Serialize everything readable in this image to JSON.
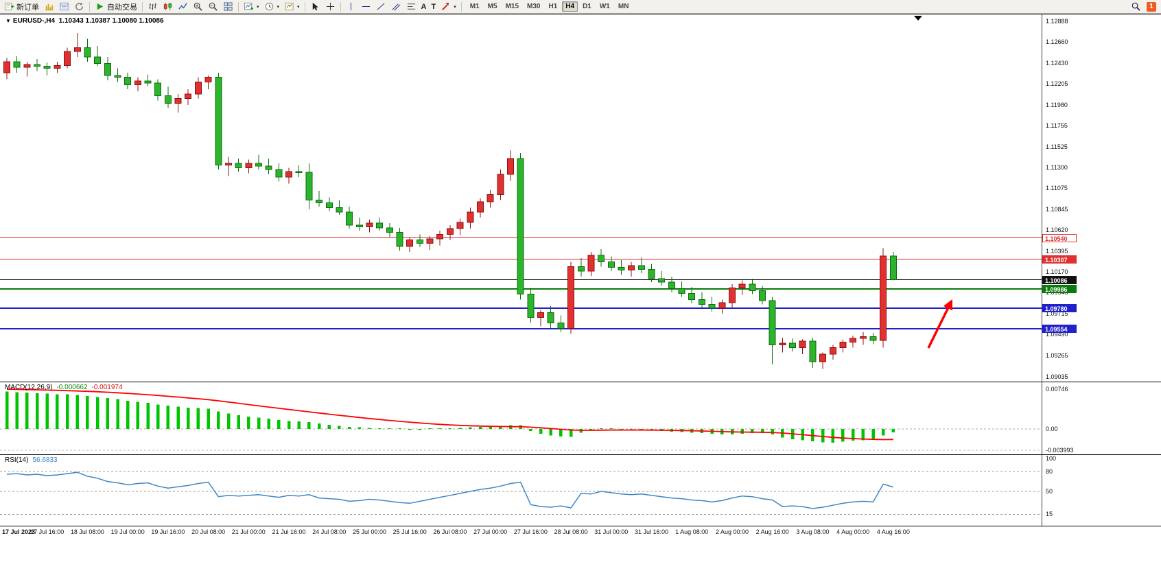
{
  "toolbar": {
    "new_order": "新订单",
    "autotrade": "自动交易",
    "text_tool": "A",
    "label_tool": "T",
    "timeframes": [
      "M1",
      "M5",
      "M15",
      "M30",
      "H1",
      "H4",
      "D1",
      "W1",
      "MN"
    ],
    "active_timeframe": "H4",
    "notification_count": "1"
  },
  "title": {
    "symbol": "EURUSD-,H4",
    "ohlc_text": "1.10343 1.10387 1.10080 1.10086"
  },
  "price_axis": {
    "labels": [
      {
        "text": "1.12888",
        "price": 1.12888
      },
      {
        "text": "1.12660",
        "price": 1.1266
      },
      {
        "text": "1.12430",
        "price": 1.1243
      },
      {
        "text": "1.12205",
        "price": 1.12205
      },
      {
        "text": "1.11980",
        "price": 1.1198
      },
      {
        "text": "1.11755",
        "price": 1.11755
      },
      {
        "text": "1.11525",
        "price": 1.11525
      },
      {
        "text": "1.11300",
        "price": 1.113
      },
      {
        "text": "1.11075",
        "price": 1.11075
      },
      {
        "text": "1.10845",
        "price": 1.10845
      },
      {
        "text": "1.10620",
        "price": 1.1062
      },
      {
        "text": "1.10395",
        "price": 1.10395
      },
      {
        "text": "1.10170",
        "price": 1.1017
      },
      {
        "text": "1.09945",
        "price": 1.09945
      },
      {
        "text": "1.09715",
        "price": 1.09715
      },
      {
        "text": "1.09490",
        "price": 1.0949
      },
      {
        "text": "1.09265",
        "price": 1.09265
      },
      {
        "text": "1.09035",
        "price": 1.09035
      }
    ],
    "tags": [
      {
        "text": "1.10540",
        "price": 1.1054,
        "bg": "#ffffff",
        "fg": "#e03030",
        "border": "#e03030"
      },
      {
        "text": "1.10307",
        "price": 1.10307,
        "bg": "#e03030",
        "fg": "#ffffff",
        "border": "#e03030"
      },
      {
        "text": "1.10086",
        "price": 1.10086,
        "bg": "#101010",
        "fg": "#ffffff",
        "border": "#101010"
      },
      {
        "text": "1.09986",
        "price": 1.09986,
        "bg": "#0a7a0a",
        "fg": "#ffffff",
        "border": "#0a7a0a"
      },
      {
        "text": "1.09780",
        "price": 1.0978,
        "bg": "#2020cc",
        "fg": "#ffffff",
        "border": "#2020cc"
      },
      {
        "text": "1.09554",
        "price": 1.09554,
        "bg": "#2020cc",
        "fg": "#ffffff",
        "border": "#2020cc"
      }
    ]
  },
  "hlines": [
    {
      "price": 1.1054,
      "color": "#e03030",
      "width": 1
    },
    {
      "price": 1.10307,
      "color": "#e03030",
      "width": 1
    },
    {
      "price": 1.10086,
      "color": "#101010",
      "width": 1
    },
    {
      "price": 1.09986,
      "color": "#0a7a0a",
      "width": 2
    },
    {
      "price": 1.0978,
      "color": "#2020cc",
      "width": 2
    },
    {
      "price": 1.09554,
      "color": "#2020cc",
      "width": 2
    }
  ],
  "macd_panel": {
    "name": "MACD(12,26,9)",
    "value_main": "-0.000662",
    "value_signal": "-0.001974",
    "axis_labels": [
      {
        "text": "0.00746",
        "value": 0.00746
      },
      {
        "text": "0.00",
        "value": 0
      },
      {
        "text": "-0.003993",
        "value": -0.003993
      }
    ]
  },
  "rsi_panel": {
    "name": "RSI(14)",
    "value": "56.6833",
    "axis_labels": [
      {
        "text": "100",
        "value": 100
      },
      {
        "text": "80",
        "value": 80
      },
      {
        "text": "50",
        "value": 50
      },
      {
        "text": "15",
        "value": 15
      }
    ],
    "levels": [
      80,
      50,
      15
    ]
  },
  "colors": {
    "bull": "#e03030",
    "bull_border": "#8c1010",
    "bear": "#2db42d",
    "bear_border": "#0b6e0b",
    "macd_hist": "#00c400",
    "macd_signal": "#ff0000",
    "rsi_line": "#3c86c8",
    "arrow": "#ff0000"
  },
  "chart_data": {
    "type": "candlestick",
    "symbol": "EURUSD",
    "timeframe": "H4",
    "candles_per_label": 4,
    "x_labels": [
      "17 Jul 2023",
      "17 Jul 16:00",
      "18 Jul 08:00",
      "19 Jul 00:00",
      "19 Jul 16:00",
      "20 Jul 08:00",
      "21 Jul 00:00",
      "21 Jul 16:00",
      "24 Jul 08:00",
      "25 Jul 00:00",
      "25 Jul 16:00",
      "26 Jul 08:00",
      "27 Jul 00:00",
      "27 Jul 16:00",
      "28 Jul 08:00",
      "31 Jul 00:00",
      "31 Jul 16:00",
      "1 Aug 08:00",
      "2 Aug 00:00",
      "2 Aug 16:00",
      "3 Aug 08:00",
      "4 Aug 00:00",
      "4 Aug 16:00"
    ],
    "ohlc": [
      [
        1.1233,
        1.1249,
        1.1226,
        1.1245
      ],
      [
        1.1245,
        1.1251,
        1.1233,
        1.1239
      ],
      [
        1.1239,
        1.1245,
        1.1229,
        1.1242
      ],
      [
        1.1242,
        1.1248,
        1.1235,
        1.124
      ],
      [
        1.124,
        1.1244,
        1.123,
        1.1238
      ],
      [
        1.1238,
        1.1245,
        1.1233,
        1.1241
      ],
      [
        1.1241,
        1.126,
        1.1238,
        1.1256
      ],
      [
        1.1256,
        1.1276,
        1.125,
        1.126
      ],
      [
        1.126,
        1.127,
        1.1245,
        1.125
      ],
      [
        1.125,
        1.1262,
        1.124,
        1.1243
      ],
      [
        1.1243,
        1.125,
        1.1225,
        1.123
      ],
      [
        1.123,
        1.1238,
        1.1223,
        1.1228
      ],
      [
        1.1228,
        1.1233,
        1.1215,
        1.122
      ],
      [
        1.122,
        1.1228,
        1.1213,
        1.1224
      ],
      [
        1.1224,
        1.1231,
        1.1218,
        1.1222
      ],
      [
        1.1222,
        1.1226,
        1.1203,
        1.1208
      ],
      [
        1.1208,
        1.1218,
        1.1195,
        1.12
      ],
      [
        1.12,
        1.121,
        1.119,
        1.1205
      ],
      [
        1.1205,
        1.1215,
        1.1198,
        1.121
      ],
      [
        1.121,
        1.1228,
        1.1205,
        1.1223
      ],
      [
        1.1223,
        1.123,
        1.1215,
        1.1228
      ],
      [
        1.1228,
        1.1233,
        1.1128,
        1.1133
      ],
      [
        1.1133,
        1.1142,
        1.1121,
        1.1135
      ],
      [
        1.1135,
        1.114,
        1.1126,
        1.113
      ],
      [
        1.113,
        1.1139,
        1.1124,
        1.1135
      ],
      [
        1.1135,
        1.1144,
        1.1128,
        1.1132
      ],
      [
        1.1132,
        1.114,
        1.1123,
        1.1128
      ],
      [
        1.1128,
        1.1135,
        1.1115,
        1.112
      ],
      [
        1.112,
        1.113,
        1.1113,
        1.1126
      ],
      [
        1.1126,
        1.1133,
        1.112,
        1.1125
      ],
      [
        1.1125,
        1.1135,
        1.1085,
        1.1095
      ],
      [
        1.1095,
        1.1105,
        1.1088,
        1.1092
      ],
      [
        1.1092,
        1.1098,
        1.1083,
        1.1087
      ],
      [
        1.1087,
        1.1095,
        1.1079,
        1.1082
      ],
      [
        1.1082,
        1.1088,
        1.1064,
        1.1068
      ],
      [
        1.1068,
        1.1076,
        1.1062,
        1.1066
      ],
      [
        1.1066,
        1.1074,
        1.106,
        1.107
      ],
      [
        1.107,
        1.1076,
        1.1062,
        1.1065
      ],
      [
        1.1065,
        1.107,
        1.1055,
        1.106
      ],
      [
        1.106,
        1.1065,
        1.104,
        1.1045
      ],
      [
        1.1045,
        1.1055,
        1.1039,
        1.1052
      ],
      [
        1.1052,
        1.1058,
        1.1044,
        1.1048
      ],
      [
        1.1048,
        1.1056,
        1.1041,
        1.1053
      ],
      [
        1.1053,
        1.1062,
        1.1046,
        1.1058
      ],
      [
        1.1058,
        1.1068,
        1.1052,
        1.1064
      ],
      [
        1.1064,
        1.1075,
        1.1057,
        1.1071
      ],
      [
        1.1071,
        1.1087,
        1.1064,
        1.1082
      ],
      [
        1.1082,
        1.1097,
        1.1076,
        1.1093
      ],
      [
        1.1093,
        1.1106,
        1.1087,
        1.1101
      ],
      [
        1.1101,
        1.1128,
        1.1095,
        1.1123
      ],
      [
        1.1123,
        1.1149,
        1.1116,
        1.114
      ],
      [
        1.114,
        1.1146,
        1.0987,
        1.0993
      ],
      [
        1.0993,
        1.1,
        1.0962,
        1.0968
      ],
      [
        1.0968,
        1.0976,
        1.0958,
        1.0973
      ],
      [
        1.0973,
        1.098,
        1.0956,
        1.0962
      ],
      [
        1.0962,
        1.097,
        1.0952,
        1.0956
      ],
      [
        1.0956,
        1.1028,
        1.095,
        1.1023
      ],
      [
        1.1023,
        1.1032,
        1.1012,
        1.1018
      ],
      [
        1.1018,
        1.1039,
        1.1013,
        1.1035
      ],
      [
        1.1035,
        1.1042,
        1.1023,
        1.1028
      ],
      [
        1.1028,
        1.1034,
        1.1018,
        1.1022
      ],
      [
        1.1022,
        1.103,
        1.1014,
        1.1019
      ],
      [
        1.1019,
        1.1028,
        1.1012,
        1.1024
      ],
      [
        1.1024,
        1.1033,
        1.1016,
        1.102
      ],
      [
        1.102,
        1.1026,
        1.1006,
        1.101
      ],
      [
        1.101,
        1.1018,
        1.1002,
        1.1006
      ],
      [
        1.1006,
        1.1012,
        1.0995,
        1.0999
      ],
      [
        1.0999,
        1.1007,
        1.099,
        1.0994
      ],
      [
        1.0994,
        1.1001,
        1.0983,
        1.0987
      ],
      [
        1.0987,
        1.0995,
        1.0978,
        1.0982
      ],
      [
        1.0982,
        1.099,
        1.0974,
        1.0978
      ],
      [
        1.0978,
        1.0987,
        1.0972,
        1.0984
      ],
      [
        1.0984,
        1.1004,
        1.0978,
        1.1
      ],
      [
        1.1,
        1.1008,
        1.0992,
        1.1004
      ],
      [
        1.1004,
        1.101,
        1.0993,
        1.0997
      ],
      [
        1.0997,
        1.1002,
        1.0982,
        1.0986
      ],
      [
        1.0986,
        1.099,
        1.0917,
        1.0938
      ],
      [
        1.0938,
        1.0946,
        1.093,
        1.094
      ],
      [
        1.094,
        1.0945,
        1.0931,
        1.0935
      ],
      [
        1.0935,
        1.0944,
        1.0928,
        1.0942
      ],
      [
        1.0942,
        1.0946,
        1.0913,
        1.092
      ],
      [
        1.092,
        1.093,
        1.0912,
        1.0928
      ],
      [
        1.0928,
        1.0938,
        1.0922,
        1.0935
      ],
      [
        1.0935,
        1.0944,
        1.093,
        1.0941
      ],
      [
        1.0941,
        1.0948,
        1.0935,
        1.0945
      ],
      [
        1.0945,
        1.0952,
        1.0938,
        1.0947
      ],
      [
        1.0947,
        1.0951,
        1.0939,
        1.0943
      ],
      [
        1.0943,
        1.1043,
        1.0935,
        1.10343
      ],
      [
        1.10343,
        1.10387,
        1.1008,
        1.10086
      ]
    ],
    "macd": {
      "main": [
        0.007,
        0.0069,
        0.0068,
        0.0067,
        0.0066,
        0.0065,
        0.0065,
        0.0064,
        0.0062,
        0.006,
        0.0058,
        0.0056,
        0.0053,
        0.0051,
        0.0049,
        0.0046,
        0.0044,
        0.0042,
        0.004,
        0.0039,
        0.0038,
        0.0033,
        0.0029,
        0.0026,
        0.0023,
        0.0021,
        0.0019,
        0.0017,
        0.0015,
        0.0014,
        0.0013,
        0.001,
        0.0008,
        0.0006,
        0.0004,
        0.0003,
        0.0002,
        0.0001,
        0.0,
        -0.0001,
        -0.0002,
        -0.0002,
        -0.0001,
        0.0,
        0.0001,
        0.0002,
        0.0003,
        0.0004,
        0.0005,
        0.0006,
        0.0007,
        0.0007,
        -0.0004,
        -0.0009,
        -0.0012,
        -0.0014,
        -0.0015,
        -0.0007,
        -0.0003,
        -0.0001,
        -0.0001,
        -0.0002,
        -0.0002,
        -0.0003,
        -0.0003,
        -0.0004,
        -0.0005,
        -0.0006,
        -0.0007,
        -0.0008,
        -0.0009,
        -0.001,
        -0.001,
        -0.0009,
        -0.0008,
        -0.0008,
        -0.001,
        -0.0016,
        -0.0019,
        -0.0021,
        -0.0023,
        -0.0025,
        -0.0026,
        -0.0024,
        -0.0022,
        -0.0021,
        -0.002,
        -0.0012,
        -0.000662
      ],
      "signal": [
        0.00745,
        0.00742,
        0.00738,
        0.00734,
        0.00729,
        0.00724,
        0.00718,
        0.00712,
        0.00705,
        0.00697,
        0.00688,
        0.00678,
        0.00667,
        0.00655,
        0.00642,
        0.00628,
        0.00613,
        0.00598,
        0.00582,
        0.00566,
        0.00549,
        0.00528,
        0.00505,
        0.00481,
        0.00457,
        0.00433,
        0.0041,
        0.00387,
        0.00364,
        0.00342,
        0.00321,
        0.00299,
        0.00277,
        0.00256,
        0.00235,
        0.00215,
        0.00196,
        0.00177,
        0.00159,
        0.00143,
        0.00127,
        0.00112,
        0.00098,
        0.00086,
        0.00076,
        0.00067,
        0.0006,
        0.00054,
        0.00049,
        0.00046,
        0.00044,
        0.00043,
        0.00034,
        0.00022,
        8e-05,
        -7e-05,
        -0.00021,
        -0.00026,
        -0.00026,
        -0.00023,
        -0.00021,
        -0.0002,
        -0.0002,
        -0.00021,
        -0.00022,
        -0.00024,
        -0.00027,
        -0.0003,
        -0.00034,
        -0.00039,
        -0.00044,
        -0.0005,
        -0.00055,
        -0.00058,
        -0.0006,
        -0.00062,
        -0.00066,
        -0.00077,
        -0.00092,
        -0.00108,
        -0.00125,
        -0.00142,
        -0.00158,
        -0.0017,
        -0.0018,
        -0.00188,
        -0.00195,
        -0.002,
        -0.001974
      ]
    },
    "rsi": [
      76,
      77,
      75,
      76,
      74,
      75,
      77,
      79,
      73,
      70,
      65,
      63,
      60,
      62,
      63,
      58,
      55,
      57,
      59,
      62,
      64,
      42,
      44,
      43,
      44,
      45,
      43,
      41,
      44,
      43,
      45,
      40,
      39,
      38,
      35,
      36,
      38,
      37,
      35,
      33,
      32,
      35,
      38,
      41,
      44,
      47,
      50,
      53,
      55,
      58,
      62,
      64,
      30,
      27,
      26,
      28,
      25,
      47,
      46,
      50,
      48,
      46,
      45,
      46,
      44,
      42,
      40,
      39,
      37,
      36,
      34,
      36,
      40,
      43,
      42,
      39,
      37,
      27,
      28,
      27,
      24,
      26,
      29,
      32,
      34,
      35,
      34,
      61,
      56.68
    ]
  },
  "annotation": {
    "type": "arrow",
    "color": "#ff0000"
  }
}
